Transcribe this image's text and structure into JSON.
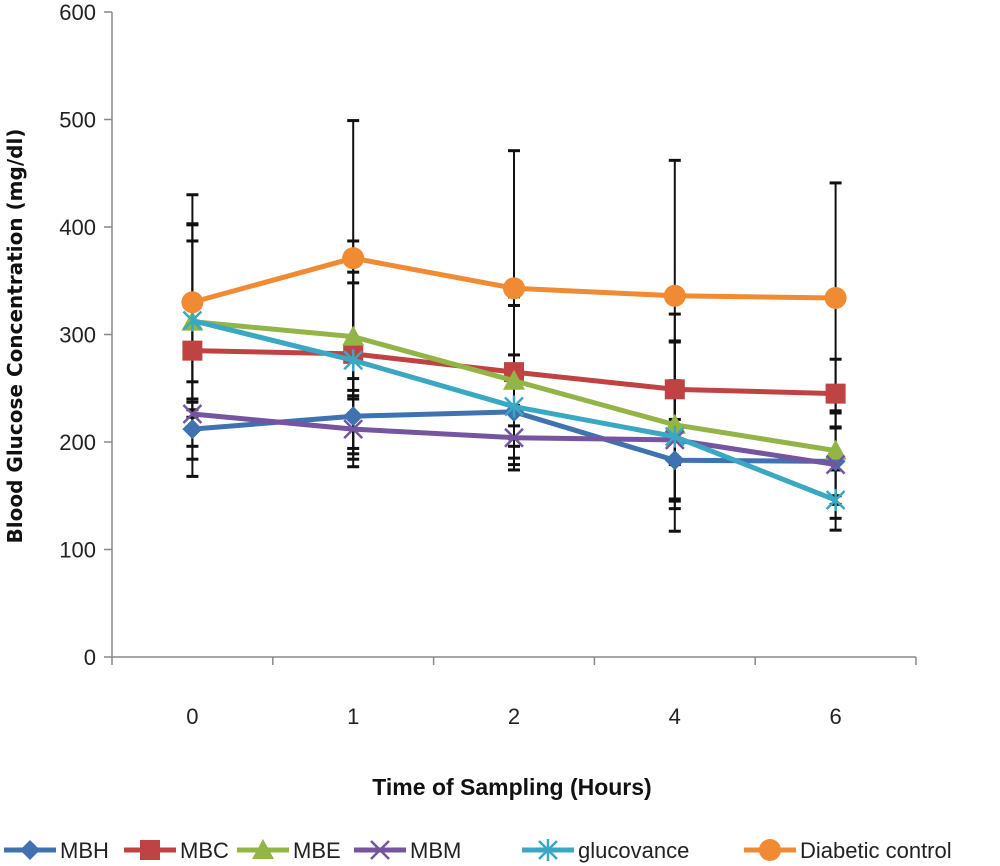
{
  "chart_data": {
    "type": "line",
    "title": "",
    "xlabel": "Time of Sampling (Hours)",
    "ylabel": "Blood Glucose Concentration (mg/dl)",
    "categories": [
      "0",
      "1",
      "2",
      "4",
      "6"
    ],
    "ylim": [
      0,
      600
    ],
    "yticks": [
      "0",
      "100",
      "200",
      "300",
      "400",
      "500",
      "600"
    ],
    "grid": false,
    "legend_position": "bottom",
    "series": [
      {
        "name": "MBH",
        "color": "#3f72b0",
        "marker": "diamond",
        "values": [
          212,
          224,
          228,
          183,
          182
        ],
        "err": [
          28,
          35,
          32,
          38,
          32
        ]
      },
      {
        "name": "MBC",
        "color": "#bf4342",
        "marker": "square",
        "values": [
          285,
          282,
          265,
          249,
          245
        ],
        "err": [
          117,
          105,
          62,
          70,
          32
        ]
      },
      {
        "name": "MBE",
        "color": "#93b547",
        "marker": "triangle",
        "values": [
          312,
          298,
          257,
          216,
          192
        ],
        "err": [
          75,
          50,
          78,
          78,
          50
        ]
      },
      {
        "name": "MBM",
        "color": "#7554a0",
        "marker": "x",
        "values": [
          226,
          212,
          204,
          202,
          179
        ],
        "err": [
          30,
          28,
          30,
          55,
          50
        ]
      },
      {
        "name": "glucovance",
        "color": "#3aa7c3",
        "marker": "asterisk",
        "values": [
          313,
          276,
          233,
          205,
          146
        ],
        "err": [
          90,
          82,
          48,
          88,
          28
        ]
      },
      {
        "name": "Diabetic control",
        "color": "#f08a33",
        "marker": "circle",
        "values": [
          330,
          371,
          343,
          336,
          334
        ],
        "err": [
          100,
          128,
          128,
          126,
          107
        ]
      }
    ]
  }
}
